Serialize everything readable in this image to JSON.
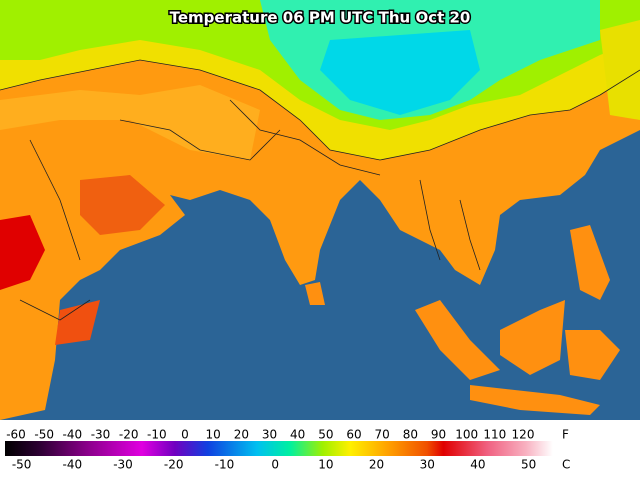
{
  "title": "Temperature 06 PM UTC Thu Oct 20",
  "scale": {
    "fahrenheit_ticks": [
      -60,
      -50,
      -40,
      -30,
      -20,
      -10,
      0,
      10,
      20,
      30,
      40,
      50,
      60,
      70,
      80,
      90,
      100,
      110,
      120
    ],
    "fahrenheit_unit": "F",
    "celsius_ticks": [
      -50,
      -40,
      -30,
      -20,
      -10,
      0,
      10,
      20,
      30,
      40,
      50
    ],
    "celsius_unit": "C"
  }
}
